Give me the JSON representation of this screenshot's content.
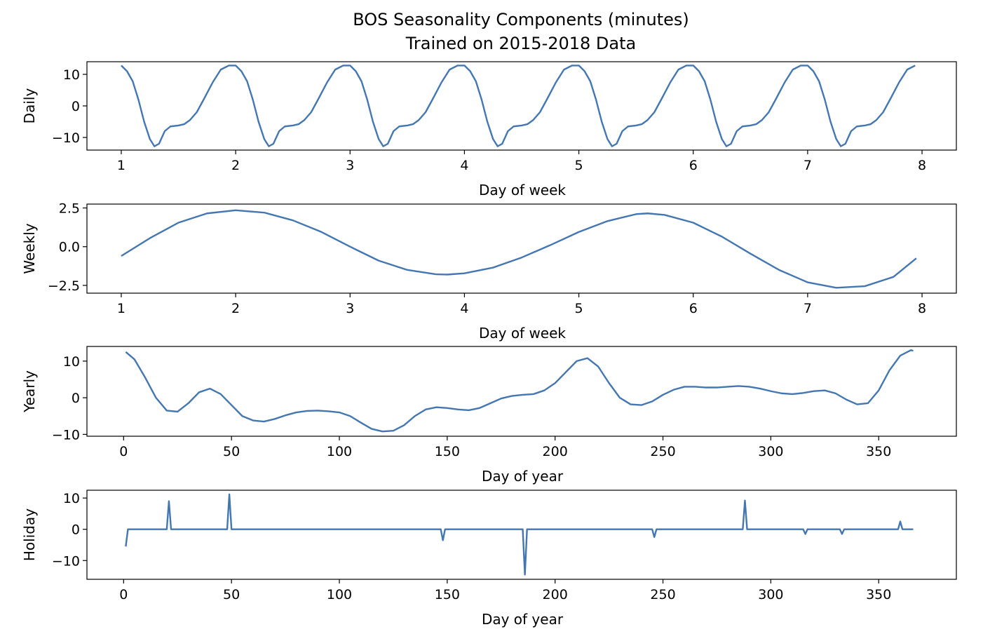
{
  "title_lines": [
    "BOS Seasonality Components (minutes)",
    "Trained on 2015-2018 Data"
  ],
  "colors": {
    "line": "#4477b2",
    "axis": "#000000",
    "background": "#ffffff"
  },
  "chart_data": [
    {
      "type": "line",
      "ylabel": "Daily",
      "xlabel": "Day of week",
      "xlim": [
        0.7,
        8.3
      ],
      "ylim": [
        -14,
        14
      ],
      "xticks": [
        1,
        2,
        3,
        4,
        5,
        6,
        7,
        8
      ],
      "yticks": [
        10,
        0,
        -10
      ],
      "ytick_labels": [
        "10",
        "0",
        "−10"
      ],
      "period_x": [
        0.0,
        0.04,
        0.08,
        0.12,
        0.16,
        0.2,
        0.25,
        0.29,
        0.31,
        0.33,
        0.36,
        0.4,
        0.45,
        0.5,
        0.55,
        0.6,
        0.65,
        0.7,
        0.75,
        0.8,
        0.85,
        0.9,
        0.93,
        0.96,
        1.0
      ],
      "period_y": [
        12.8,
        11.5,
        8.0,
        2.0,
        -5.0,
        -10.5,
        -12.8,
        -12.0,
        -10.5,
        -9.0,
        -7.5,
        -6.2,
        -5.8,
        -5.0,
        -2.5,
        0.5,
        4.0,
        8.0,
        11.2,
        12.8,
        12.5,
        11.0,
        9.5,
        8.0,
        12.8
      ],
      "y_window": [
        [
          1.0,
          12.8
        ],
        [
          1.05,
          11.0
        ],
        [
          1.1,
          7.8
        ],
        [
          1.15,
          2.0
        ],
        [
          1.2,
          -5.0
        ],
        [
          1.25,
          -10.5
        ],
        [
          1.29,
          -12.8
        ],
        [
          1.33,
          -12.0
        ],
        [
          1.38,
          -8.0
        ],
        [
          1.43,
          -6.5
        ],
        [
          1.5,
          -6.2
        ],
        [
          1.55,
          -5.8
        ],
        [
          1.6,
          -4.5
        ],
        [
          1.66,
          -2.0
        ],
        [
          1.72,
          2.0
        ],
        [
          1.8,
          7.5
        ],
        [
          1.87,
          11.5
        ],
        [
          1.94,
          12.8
        ],
        [
          2.0,
          12.8
        ]
      ],
      "period": 1,
      "x_range": [
        1,
        7.97
      ]
    },
    {
      "type": "line",
      "ylabel": "Weekly",
      "xlabel": "Day of week",
      "xlim": [
        0.7,
        8.3
      ],
      "ylim": [
        -3.0,
        2.75
      ],
      "xticks": [
        1,
        2,
        3,
        4,
        5,
        6,
        7,
        8
      ],
      "yticks": [
        2.5,
        0.0,
        -2.5
      ],
      "ytick_labels": [
        "2.5",
        "0.0",
        "−2.5"
      ],
      "x": [
        1.0,
        1.25,
        1.5,
        1.75,
        2.0,
        2.25,
        2.5,
        2.75,
        3.0,
        3.25,
        3.5,
        3.75,
        3.85,
        4.0,
        4.25,
        4.5,
        4.75,
        5.0,
        5.25,
        5.5,
        5.6,
        5.75,
        6.0,
        6.25,
        6.5,
        6.75,
        7.0,
        7.25,
        7.5,
        7.75,
        7.95
      ],
      "y": [
        -0.6,
        0.55,
        1.55,
        2.15,
        2.35,
        2.2,
        1.7,
        0.95,
        0.0,
        -0.9,
        -1.5,
        -1.78,
        -1.8,
        -1.72,
        -1.35,
        -0.7,
        0.1,
        0.95,
        1.65,
        2.1,
        2.15,
        2.05,
        1.55,
        0.65,
        -0.45,
        -1.5,
        -2.3,
        -2.65,
        -2.55,
        -1.95,
        -0.75
      ]
    },
    {
      "type": "line",
      "ylabel": "Yearly",
      "xlabel": "Day of year",
      "xlim": [
        -17,
        386
      ],
      "ylim": [
        -10.5,
        14
      ],
      "xticks": [
        0,
        50,
        100,
        150,
        200,
        250,
        300,
        350
      ],
      "yticks": [
        10,
        0,
        -10
      ],
      "ytick_labels": [
        "10",
        "0",
        "−10"
      ],
      "x": [
        1,
        5,
        10,
        15,
        20,
        25,
        30,
        35,
        40,
        45,
        50,
        55,
        60,
        65,
        70,
        75,
        80,
        85,
        90,
        95,
        100,
        105,
        110,
        115,
        120,
        125,
        130,
        135,
        140,
        145,
        150,
        155,
        160,
        165,
        170,
        175,
        180,
        185,
        190,
        195,
        200,
        205,
        210,
        215,
        220,
        225,
        230,
        235,
        240,
        245,
        250,
        255,
        260,
        265,
        270,
        275,
        280,
        285,
        290,
        295,
        300,
        305,
        310,
        315,
        320,
        325,
        330,
        335,
        340,
        345,
        350,
        355,
        360,
        365,
        366
      ],
      "y": [
        12.5,
        10.5,
        5.5,
        0.0,
        -3.5,
        -3.8,
        -1.5,
        1.5,
        2.5,
        1.0,
        -2.0,
        -5.0,
        -6.2,
        -6.5,
        -5.8,
        -4.8,
        -4.0,
        -3.6,
        -3.5,
        -3.7,
        -4.0,
        -5.0,
        -6.8,
        -8.5,
        -9.2,
        -9.0,
        -7.5,
        -5.0,
        -3.2,
        -2.6,
        -2.8,
        -3.2,
        -3.4,
        -2.8,
        -1.5,
        -0.2,
        0.5,
        0.8,
        1.0,
        2.0,
        4.0,
        7.0,
        10.0,
        10.8,
        8.5,
        4.0,
        0.0,
        -1.8,
        -2.0,
        -1.0,
        0.8,
        2.2,
        3.0,
        3.0,
        2.8,
        2.8,
        3.0,
        3.2,
        3.0,
        2.5,
        1.8,
        1.2,
        1.0,
        1.3,
        1.8,
        2.0,
        1.2,
        -0.5,
        -1.8,
        -1.5,
        2.0,
        7.5,
        11.5,
        13.0,
        12.8
      ]
    },
    {
      "type": "line",
      "ylabel": "Holiday",
      "xlabel": "Day of year",
      "xlim": [
        -17,
        386
      ],
      "ylim": [
        -16,
        12.5
      ],
      "xticks": [
        0,
        50,
        100,
        150,
        200,
        250,
        300,
        350
      ],
      "yticks": [
        10,
        0,
        -10
      ],
      "ytick_labels": [
        "10",
        "0",
        "−10"
      ],
      "x": [
        1,
        2,
        20,
        21,
        22,
        48,
        49,
        50,
        147,
        148,
        149,
        185,
        186,
        187,
        245,
        246,
        247,
        287,
        288,
        289,
        315,
        316,
        317,
        332,
        333,
        334,
        359,
        360,
        361,
        366
      ],
      "y": [
        -5.5,
        0,
        0,
        9.0,
        0,
        0,
        11.2,
        0,
        0,
        -3.5,
        0,
        0,
        -14.5,
        0,
        0,
        -2.5,
        0,
        0,
        9.2,
        0,
        0,
        -1.5,
        0,
        0,
        -1.5,
        0,
        0,
        2.5,
        0,
        0
      ]
    }
  ]
}
